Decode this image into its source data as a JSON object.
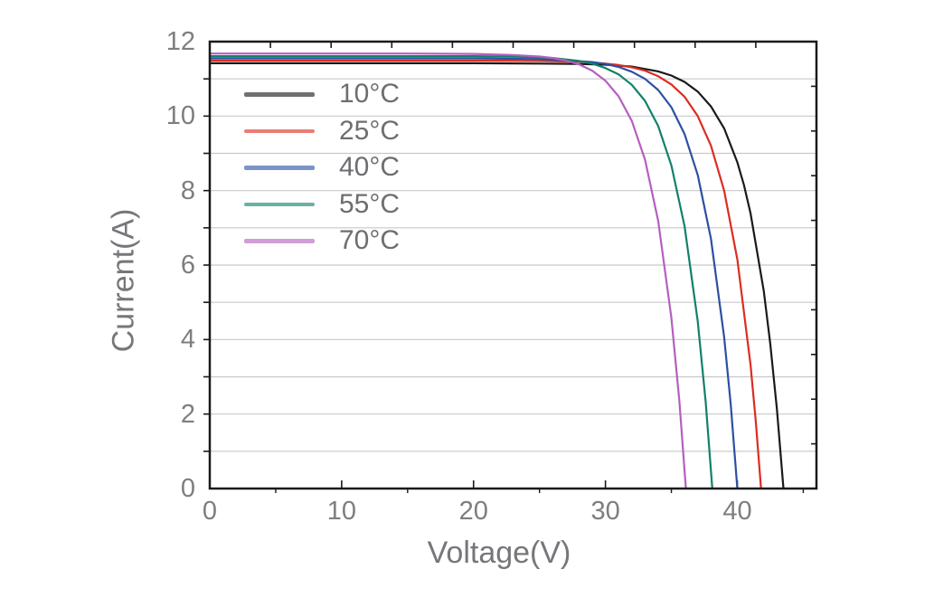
{
  "chart_data": {
    "type": "line",
    "title": "",
    "xlabel": "Voltage(V)",
    "ylabel": "Current(A)",
    "xlim": [
      0,
      46
    ],
    "ylim": [
      0,
      12
    ],
    "x_ticks": [
      0,
      10,
      20,
      30,
      40
    ],
    "x_tick_labels": [
      "0",
      "10",
      "20",
      "30",
      "40"
    ],
    "x_minor_ticks": [
      5,
      15,
      25,
      35,
      45
    ],
    "y_ticks": [
      0,
      2,
      4,
      6,
      8,
      10,
      12
    ],
    "y_tick_labels": [
      "0",
      "2",
      "4",
      "6",
      "8",
      "10",
      "12"
    ],
    "grid": {
      "horizontal_every": 1,
      "vertical": false,
      "color": "#c8c9cb"
    },
    "frame_color": "#1a1a1a",
    "tick_label_color": "#7d7e81",
    "axis_title_color": "#76777a",
    "legend": {
      "position": "upper-left-inside",
      "frame": false
    },
    "series": [
      {
        "name": "10°C",
        "temperature_c": 10,
        "color": "#1a1a1a",
        "isc_a": 11.42,
        "voc_v": 43.5,
        "points": [
          [
            0,
            11.42
          ],
          [
            5,
            11.42
          ],
          [
            10,
            11.42
          ],
          [
            15,
            11.42
          ],
          [
            20,
            11.42
          ],
          [
            25,
            11.41
          ],
          [
            28,
            11.4
          ],
          [
            30,
            11.38
          ],
          [
            32,
            11.33
          ],
          [
            34,
            11.2
          ],
          [
            35,
            11.09
          ],
          [
            36,
            10.92
          ],
          [
            37,
            10.66
          ],
          [
            38,
            10.26
          ],
          [
            39,
            9.67
          ],
          [
            40,
            8.76
          ],
          [
            40.5,
            8.15
          ],
          [
            41,
            7.39
          ],
          [
            42,
            5.31
          ],
          [
            42.5,
            3.89
          ],
          [
            43,
            2.15
          ],
          [
            43.5,
            0
          ]
        ]
      },
      {
        "name": "25°C",
        "temperature_c": 25,
        "color": "#dd2c21",
        "isc_a": 11.49,
        "voc_v": 41.8,
        "points": [
          [
            0,
            11.49
          ],
          [
            5,
            11.49
          ],
          [
            10,
            11.49
          ],
          [
            15,
            11.49
          ],
          [
            20,
            11.49
          ],
          [
            25,
            11.48
          ],
          [
            28,
            11.46
          ],
          [
            30,
            11.41
          ],
          [
            31,
            11.37
          ],
          [
            32,
            11.31
          ],
          [
            33,
            11.22
          ],
          [
            34,
            11.07
          ],
          [
            35,
            10.85
          ],
          [
            36,
            10.52
          ],
          [
            37,
            10.0
          ],
          [
            38,
            9.21
          ],
          [
            39,
            8.0
          ],
          [
            40,
            6.15
          ],
          [
            41,
            3.32
          ],
          [
            41.4,
            1.8
          ],
          [
            41.8,
            0
          ]
        ]
      },
      {
        "name": "40°C",
        "temperature_c": 40,
        "color": "#2c50a2",
        "isc_a": 11.55,
        "voc_v": 40.0,
        "points": [
          [
            0,
            11.55
          ],
          [
            5,
            11.55
          ],
          [
            10,
            11.55
          ],
          [
            15,
            11.55
          ],
          [
            20,
            11.55
          ],
          [
            25,
            11.53
          ],
          [
            27,
            11.5
          ],
          [
            29,
            11.45
          ],
          [
            30,
            11.4
          ],
          [
            31,
            11.32
          ],
          [
            32,
            11.19
          ],
          [
            33,
            11.0
          ],
          [
            34,
            10.7
          ],
          [
            35,
            10.24
          ],
          [
            36,
            9.52
          ],
          [
            37,
            8.42
          ],
          [
            38,
            6.71
          ],
          [
            39,
            4.07
          ],
          [
            39.5,
            2.26
          ],
          [
            40,
            0
          ]
        ]
      },
      {
        "name": "55°C",
        "temperature_c": 55,
        "color": "#12806b",
        "isc_a": 11.61,
        "voc_v": 38.1,
        "points": [
          [
            0,
            11.61
          ],
          [
            5,
            11.61
          ],
          [
            10,
            11.61
          ],
          [
            15,
            11.61
          ],
          [
            20,
            11.61
          ],
          [
            24,
            11.59
          ],
          [
            26,
            11.56
          ],
          [
            28,
            11.48
          ],
          [
            29,
            11.41
          ],
          [
            30,
            11.29
          ],
          [
            31,
            11.12
          ],
          [
            32,
            10.84
          ],
          [
            33,
            10.41
          ],
          [
            34,
            9.73
          ],
          [
            35,
            8.68
          ],
          [
            36,
            7.05
          ],
          [
            37,
            4.49
          ],
          [
            37.6,
            2.32
          ],
          [
            38.1,
            0
          ]
        ]
      },
      {
        "name": "70°C",
        "temperature_c": 70,
        "color": "#b55fc0",
        "isc_a": 11.68,
        "voc_v": 36.1,
        "points": [
          [
            0,
            11.68
          ],
          [
            5,
            11.68
          ],
          [
            10,
            11.68
          ],
          [
            15,
            11.68
          ],
          [
            20,
            11.67
          ],
          [
            23,
            11.64
          ],
          [
            25,
            11.6
          ],
          [
            26,
            11.56
          ],
          [
            27,
            11.49
          ],
          [
            28,
            11.39
          ],
          [
            29,
            11.22
          ],
          [
            30,
            10.95
          ],
          [
            31,
            10.53
          ],
          [
            32,
            9.87
          ],
          [
            33,
            8.83
          ],
          [
            34,
            7.18
          ],
          [
            35,
            4.59
          ],
          [
            35.6,
            2.37
          ],
          [
            36.1,
            0
          ]
        ]
      }
    ]
  }
}
